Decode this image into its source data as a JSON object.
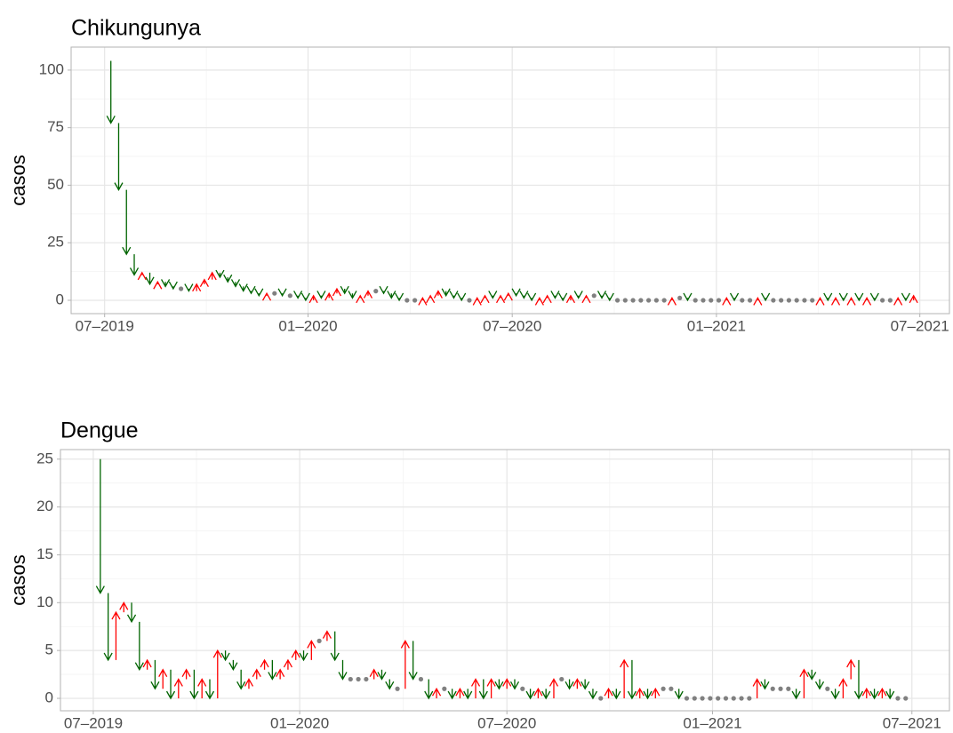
{
  "chart_data": [
    {
      "type": "arrow",
      "title": "Chikungunya",
      "y_label": "casos",
      "x": [
        0,
        1,
        2,
        3,
        4,
        5,
        6,
        7,
        8,
        9,
        10,
        11,
        12,
        13,
        14,
        15,
        16,
        17,
        18,
        19,
        20,
        21,
        22,
        23,
        24,
        25,
        26,
        27,
        28,
        29,
        30,
        31,
        32,
        33,
        34,
        35,
        36,
        37,
        38,
        39,
        40,
        41,
        42,
        43,
        44,
        45,
        46,
        47,
        48,
        49,
        50,
        51,
        52,
        53,
        54,
        55,
        56,
        57,
        58,
        59,
        60,
        61,
        62,
        63,
        64,
        65,
        66,
        67,
        68,
        69,
        70,
        71,
        72,
        73,
        74,
        75,
        76,
        77,
        78,
        79,
        80,
        81,
        82,
        83,
        84,
        85,
        86,
        87,
        88,
        89,
        90,
        91,
        92,
        93,
        94,
        95,
        96,
        97,
        98,
        99,
        100,
        101,
        102,
        103,
        104
      ],
      "values": [
        104,
        77,
        48,
        20,
        11,
        12,
        7,
        8,
        6,
        5,
        5,
        4,
        7,
        9,
        12,
        10,
        8,
        6,
        4,
        3,
        2,
        3,
        3,
        2,
        2,
        1,
        0,
        2,
        1,
        3,
        5,
        3,
        1,
        2,
        4,
        4,
        3,
        1,
        0,
        0,
        0,
        1,
        2,
        4,
        2,
        1,
        0,
        0,
        1,
        2,
        1,
        2,
        3,
        2,
        1,
        0,
        1,
        2,
        1,
        0,
        2,
        1,
        2,
        2,
        1,
        0,
        0,
        0,
        0,
        0,
        0,
        0,
        0,
        1,
        1,
        0,
        0,
        0,
        0,
        0,
        1,
        0,
        0,
        0,
        1,
        0,
        0,
        0,
        0,
        0,
        0,
        0,
        1,
        0,
        1,
        0,
        1,
        0,
        1,
        0,
        0,
        0,
        1,
        0,
        2
      ],
      "xlim": [
        -4.1,
        108.6
      ],
      "xticks": [
        {
          "value": 0.2,
          "label": "07–2019"
        },
        {
          "value": 26.3,
          "label": "01–2020"
        },
        {
          "value": 52.5,
          "label": "07–2020"
        },
        {
          "value": 78.7,
          "label": "01–2021"
        },
        {
          "value": 104.8,
          "label": "07–2021"
        }
      ],
      "ylim": [
        -5.8,
        110
      ],
      "yticks": [
        0,
        25,
        50,
        75,
        100
      ],
      "down_color": "#006400",
      "up_color": "#ff0000",
      "same_color": "#808080",
      "grid": true
    },
    {
      "type": "arrow",
      "title": "Dengue",
      "y_label": "casos",
      "x": [
        0,
        1,
        2,
        3,
        4,
        5,
        6,
        7,
        8,
        9,
        10,
        11,
        12,
        13,
        14,
        15,
        16,
        17,
        18,
        19,
        20,
        21,
        22,
        23,
        24,
        25,
        26,
        27,
        28,
        29,
        30,
        31,
        32,
        33,
        34,
        35,
        36,
        37,
        38,
        39,
        40,
        41,
        42,
        43,
        44,
        45,
        46,
        47,
        48,
        49,
        50,
        51,
        52,
        53,
        54,
        55,
        56,
        57,
        58,
        59,
        60,
        61,
        62,
        63,
        64,
        65,
        66,
        67,
        68,
        69,
        70,
        71,
        72,
        73,
        74,
        75,
        76,
        77,
        78,
        79,
        80,
        81,
        82,
        83,
        84,
        85,
        86,
        87,
        88,
        89,
        90,
        91,
        92,
        93,
        94,
        95,
        96,
        97,
        98,
        99,
        100,
        101,
        102,
        103,
        104
      ],
      "values": [
        25,
        11,
        4,
        9,
        10,
        8,
        3,
        4,
        1,
        3,
        0,
        2,
        3,
        0,
        2,
        0,
        5,
        4,
        3,
        1,
        2,
        3,
        4,
        2,
        3,
        4,
        5,
        4,
        6,
        6,
        7,
        4,
        2,
        2,
        2,
        2,
        3,
        2,
        1,
        1,
        6,
        2,
        2,
        0,
        1,
        1,
        0,
        1,
        0,
        2,
        0,
        2,
        1,
        2,
        1,
        1,
        0,
        1,
        0,
        2,
        2,
        1,
        2,
        1,
        0,
        0,
        1,
        0,
        4,
        0,
        1,
        0,
        1,
        1,
        1,
        0,
        0,
        0,
        0,
        0,
        0,
        0,
        0,
        0,
        0,
        2,
        1,
        1,
        1,
        1,
        0,
        3,
        2,
        1,
        1,
        0,
        2,
        4,
        0,
        1,
        0,
        1,
        0,
        0,
        0
      ],
      "xlim": [
        -4.1,
        109.6
      ],
      "xticks": [
        {
          "value": 0.1,
          "label": "07–2019"
        },
        {
          "value": 26.5,
          "label": "01–2020"
        },
        {
          "value": 53.0,
          "label": "07–2020"
        },
        {
          "value": 79.3,
          "label": "01–2021"
        },
        {
          "value": 104.8,
          "label": "07–2021"
        }
      ],
      "ylim": [
        -1.3,
        26
      ],
      "yticks": [
        0,
        5,
        10,
        15,
        20,
        25
      ],
      "down_color": "#006400",
      "up_color": "#ff0000",
      "same_color": "#808080",
      "grid": true
    }
  ]
}
